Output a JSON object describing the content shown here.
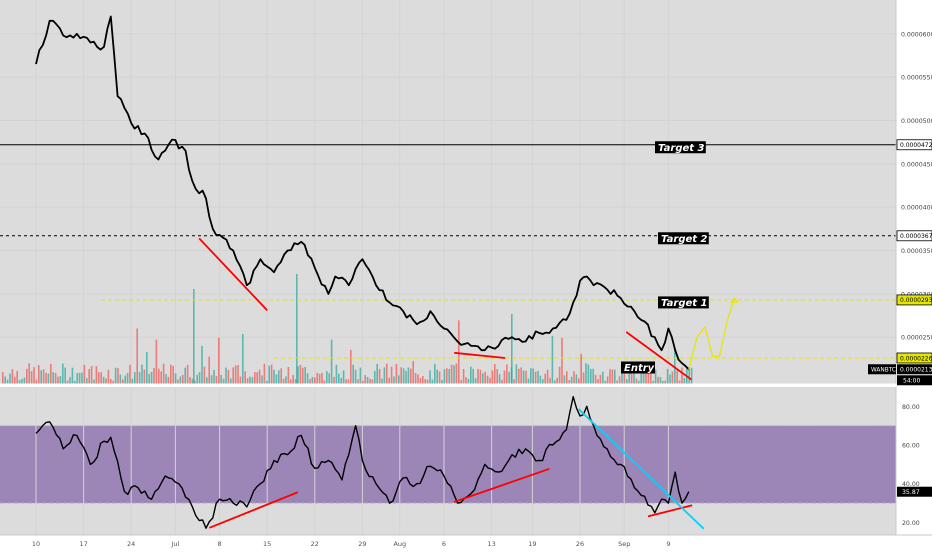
{
  "chart_data": [
    {
      "type": "line",
      "symbol": "WANBTC",
      "yticks": [
        "0.0000600",
        "0.0000550",
        "0.0000500",
        "0.0000450",
        "0.0000400",
        "0.0000350",
        "0.0000300",
        "0.0000250"
      ],
      "ytick_values": [
        6e-05,
        5.5e-05,
        5e-05,
        4.5e-05,
        4e-05,
        3.5e-05,
        3e-05,
        2.5e-05
      ],
      "price_readout": "0.0000213",
      "countdown": "54:00",
      "levels": [
        {
          "label": "Target 3",
          "price_text": "0.0000472",
          "value": 4.72e-05,
          "color": "#000000",
          "style": "solid"
        },
        {
          "label": "Target 2",
          "price_text": "0.0000367",
          "value": 3.67e-05,
          "color": "#000000",
          "style": "dashed"
        },
        {
          "label": "Target 1",
          "price_text": "0.0000293",
          "value": 2.93e-05,
          "color": "#e6e600",
          "style": "dashed"
        },
        {
          "label": "Entry",
          "price_text": "0.0000226",
          "value": 2.26e-05,
          "color": "#e6e600",
          "style": "dashed"
        }
      ],
      "price_points": [
        {
          "d": 0,
          "v": 5.65e-05
        },
        {
          "d": 2,
          "v": 6.15e-05
        },
        {
          "d": 4,
          "v": 5.98e-05
        },
        {
          "d": 6,
          "v": 6e-05
        },
        {
          "d": 8,
          "v": 5.9e-05
        },
        {
          "d": 10,
          "v": 5.85e-05
        },
        {
          "d": 11,
          "v": 6.2e-05
        },
        {
          "d": 12,
          "v": 5.28e-05
        },
        {
          "d": 14,
          "v": 4.97e-05
        },
        {
          "d": 16,
          "v": 4.85e-05
        },
        {
          "d": 18,
          "v": 4.55e-05
        },
        {
          "d": 20,
          "v": 4.78e-05
        },
        {
          "d": 22,
          "v": 4.65e-05
        },
        {
          "d": 23,
          "v": 4.3e-05
        },
        {
          "d": 25,
          "v": 4.1e-05
        },
        {
          "d": 26,
          "v": 3.75e-05
        },
        {
          "d": 27,
          "v": 3.68e-05
        },
        {
          "d": 29,
          "v": 3.5e-05
        },
        {
          "d": 31,
          "v": 3.1e-05
        },
        {
          "d": 33,
          "v": 3.4e-05
        },
        {
          "d": 35,
          "v": 3.25e-05
        },
        {
          "d": 37,
          "v": 3.5e-05
        },
        {
          "d": 39,
          "v": 3.6e-05
        },
        {
          "d": 41,
          "v": 3.3e-05
        },
        {
          "d": 43,
          "v": 3e-05
        },
        {
          "d": 44,
          "v": 3.2e-05
        },
        {
          "d": 46,
          "v": 3.1e-05
        },
        {
          "d": 48,
          "v": 3.4e-05
        },
        {
          "d": 50,
          "v": 3.1e-05
        },
        {
          "d": 52,
          "v": 2.9e-05
        },
        {
          "d": 54,
          "v": 2.8e-05
        },
        {
          "d": 56,
          "v": 2.65e-05
        },
        {
          "d": 58,
          "v": 2.8e-05
        },
        {
          "d": 60,
          "v": 2.6e-05
        },
        {
          "d": 62,
          "v": 2.45e-05
        },
        {
          "d": 64,
          "v": 2.4e-05
        },
        {
          "d": 66,
          "v": 2.35e-05
        },
        {
          "d": 68,
          "v": 2.4e-05
        },
        {
          "d": 70,
          "v": 2.5e-05
        },
        {
          "d": 72,
          "v": 2.45e-05
        },
        {
          "d": 74,
          "v": 2.55e-05
        },
        {
          "d": 76,
          "v": 2.6e-05
        },
        {
          "d": 78,
          "v": 2.7e-05
        },
        {
          "d": 79,
          "v": 2.9e-05
        },
        {
          "d": 80,
          "v": 3.15e-05
        },
        {
          "d": 81,
          "v": 3.2e-05
        },
        {
          "d": 82,
          "v": 3.1e-05
        },
        {
          "d": 84,
          "v": 3.05e-05
        },
        {
          "d": 86,
          "v": 2.95e-05
        },
        {
          "d": 88,
          "v": 2.8e-05
        },
        {
          "d": 89,
          "v": 2.7e-05
        },
        {
          "d": 91,
          "v": 2.5e-05
        },
        {
          "d": 92,
          "v": 2.35e-05
        },
        {
          "d": 93,
          "v": 2.6e-05
        },
        {
          "d": 94,
          "v": 2.35e-05
        },
        {
          "d": 95,
          "v": 2.2e-05
        },
        {
          "d": 96,
          "v": 2.13e-05
        }
      ],
      "projection": [
        {
          "d": 96,
          "v": 2.13e-05
        },
        {
          "d": 97.2,
          "v": 2.5e-05
        },
        {
          "d": 98.4,
          "v": 2.62e-05
        },
        {
          "d": 99.5,
          "v": 2.28e-05
        },
        {
          "d": 100.5,
          "v": 2.28e-05
        },
        {
          "d": 101.7,
          "v": 2.7e-05
        },
        {
          "d": 102.7,
          "v": 2.95e-05
        }
      ],
      "price_trendlines": [
        {
          "d1": 24,
          "v1": 3.64e-05,
          "d2": 34,
          "v2": 2.81e-05
        },
        {
          "d1": 61.5,
          "v1": 2.32e-05,
          "d2": 69,
          "v2": 2.26e-05
        },
        {
          "d1": 86.8,
          "v1": 2.56e-05,
          "d2": 96.4,
          "v2": 2.01e-05
        }
      ],
      "ylim": [
        1.96e-05,
        6.39e-05
      ],
      "colors": {
        "line": "#000000",
        "trendline": "#ff0000",
        "projection": "#e6e600",
        "level_yellow": "#e6e600",
        "readout": "#000000",
        "vol_up": "#26a69a",
        "vol_down": "#ef5350"
      }
    },
    {
      "type": "line",
      "indicator": "RSI",
      "yticks": [
        "80.00",
        "60.00",
        "40.00",
        "20.00"
      ],
      "ytick_values": [
        80,
        60,
        40,
        20
      ],
      "readout": "35.87",
      "band": [
        30,
        70
      ],
      "ylim": [
        13.5,
        90
      ],
      "rsi_points": [
        {
          "d": 0,
          "v": 66
        },
        {
          "d": 2,
          "v": 72
        },
        {
          "d": 4,
          "v": 58
        },
        {
          "d": 6,
          "v": 65
        },
        {
          "d": 8,
          "v": 50
        },
        {
          "d": 10,
          "v": 62
        },
        {
          "d": 11,
          "v": 64
        },
        {
          "d": 13,
          "v": 36
        },
        {
          "d": 15,
          "v": 38
        },
        {
          "d": 17,
          "v": 32
        },
        {
          "d": 19,
          "v": 44
        },
        {
          "d": 21,
          "v": 40
        },
        {
          "d": 23,
          "v": 28
        },
        {
          "d": 24,
          "v": 21
        },
        {
          "d": 25,
          "v": 17
        },
        {
          "d": 27,
          "v": 32
        },
        {
          "d": 29,
          "v": 30
        },
        {
          "d": 31,
          "v": 28
        },
        {
          "d": 33,
          "v": 40
        },
        {
          "d": 35,
          "v": 52
        },
        {
          "d": 37,
          "v": 55
        },
        {
          "d": 39,
          "v": 65
        },
        {
          "d": 41,
          "v": 48
        },
        {
          "d": 43,
          "v": 52
        },
        {
          "d": 45,
          "v": 42
        },
        {
          "d": 47,
          "v": 70
        },
        {
          "d": 48,
          "v": 52
        },
        {
          "d": 50,
          "v": 40
        },
        {
          "d": 52,
          "v": 30
        },
        {
          "d": 54,
          "v": 43
        },
        {
          "d": 56,
          "v": 40
        },
        {
          "d": 58,
          "v": 49
        },
        {
          "d": 60,
          "v": 44
        },
        {
          "d": 62,
          "v": 30
        },
        {
          "d": 64,
          "v": 35
        },
        {
          "d": 66,
          "v": 50
        },
        {
          "d": 68,
          "v": 46
        },
        {
          "d": 70,
          "v": 55
        },
        {
          "d": 72,
          "v": 58
        },
        {
          "d": 74,
          "v": 52
        },
        {
          "d": 76,
          "v": 60
        },
        {
          "d": 78,
          "v": 68
        },
        {
          "d": 79,
          "v": 85
        },
        {
          "d": 80,
          "v": 75
        },
        {
          "d": 81,
          "v": 80
        },
        {
          "d": 82,
          "v": 70
        },
        {
          "d": 84,
          "v": 58
        },
        {
          "d": 86,
          "v": 50
        },
        {
          "d": 88,
          "v": 38
        },
        {
          "d": 89,
          "v": 34
        },
        {
          "d": 90,
          "v": 29
        },
        {
          "d": 91,
          "v": 25
        },
        {
          "d": 92,
          "v": 32
        },
        {
          "d": 93,
          "v": 30
        },
        {
          "d": 94,
          "v": 46
        },
        {
          "d": 95,
          "v": 30
        },
        {
          "d": 96,
          "v": 35.87
        }
      ],
      "rsi_trendlines": [
        {
          "color": "#ff0000",
          "d1": 25.5,
          "v1": 17.2,
          "d2": 38.5,
          "v2": 35.6
        },
        {
          "color": "#ff0000",
          "d1": 61.5,
          "v1": 30.6,
          "d2": 75.5,
          "v2": 47.7
        },
        {
          "color": "#ff0000",
          "d1": 90,
          "v1": 23.1,
          "d2": 96.5,
          "v2": 28.9
        },
        {
          "color": "#00d4ff",
          "d1": 79.8,
          "v1": 78.6,
          "d2": 98.2,
          "v2": 16.7
        }
      ],
      "colors": {
        "line": "#000000",
        "band": "#9c86b8",
        "band_border": "#a0a0a0",
        "readout": "#000000"
      }
    }
  ],
  "x_axis": {
    "tick_labels": [
      "10",
      "17",
      "24",
      "Jul",
      "8",
      "15",
      "22",
      "29",
      "Aug",
      "6",
      "13",
      "19",
      "26",
      "Sep",
      "9"
    ],
    "tick_days": [
      0,
      7,
      14,
      20.5,
      27,
      34,
      41,
      48,
      53.5,
      60,
      67,
      73,
      80,
      86.5,
      93
    ]
  }
}
